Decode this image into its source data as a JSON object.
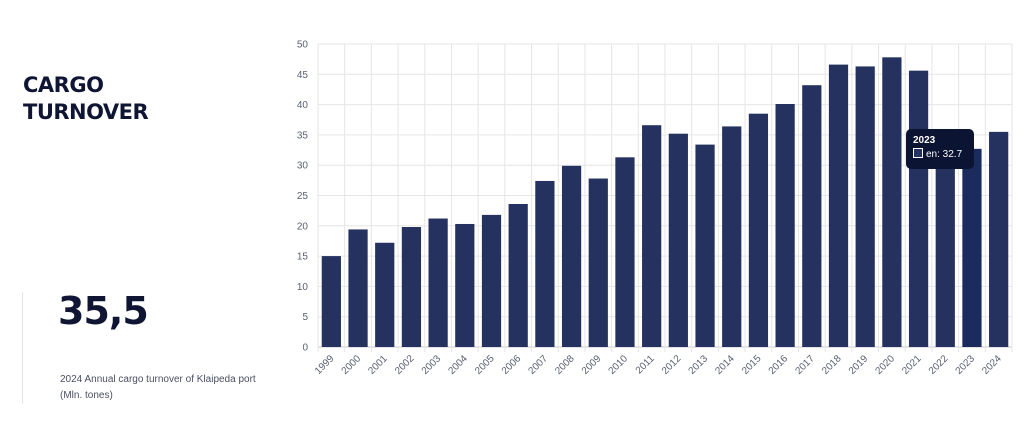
{
  "title": "CARGO TURNOVER",
  "stat": {
    "value": "35,5",
    "caption": "2024 Annual cargo turnover of Klaipeda port (Mln. tones)"
  },
  "colors": {
    "bar": "#25315f",
    "bar_highlight": "#1b2b5e",
    "grid": "#e6e6e6",
    "axis": "#c8c8c8",
    "tooltip_bg": "#0b1433"
  },
  "tooltip": {
    "title": "2023",
    "label": "en: 32.7"
  },
  "chart_data": {
    "type": "bar",
    "categories": [
      "1999",
      "2000",
      "2001",
      "2002",
      "2003",
      "2004",
      "2005",
      "2006",
      "2007",
      "2008",
      "2009",
      "2010",
      "2011",
      "2012",
      "2013",
      "2014",
      "2015",
      "2016",
      "2017",
      "2018",
      "2019",
      "2020",
      "2021",
      "2022",
      "2023",
      "2024"
    ],
    "series": [
      {
        "name": "en",
        "values": [
          15.0,
          19.4,
          17.2,
          19.8,
          21.2,
          20.3,
          21.8,
          23.6,
          27.4,
          29.9,
          27.8,
          31.3,
          36.6,
          35.2,
          33.4,
          36.4,
          38.5,
          40.1,
          43.2,
          46.6,
          46.3,
          47.8,
          45.6,
          35.0,
          32.7,
          35.5
        ]
      }
    ],
    "yticks": [
      0,
      5,
      10,
      15,
      20,
      25,
      30,
      35,
      40,
      45,
      50
    ],
    "ylim": [
      0,
      50
    ],
    "xlabel": "",
    "ylabel": "",
    "grid": true,
    "highlight_category": "2023"
  }
}
